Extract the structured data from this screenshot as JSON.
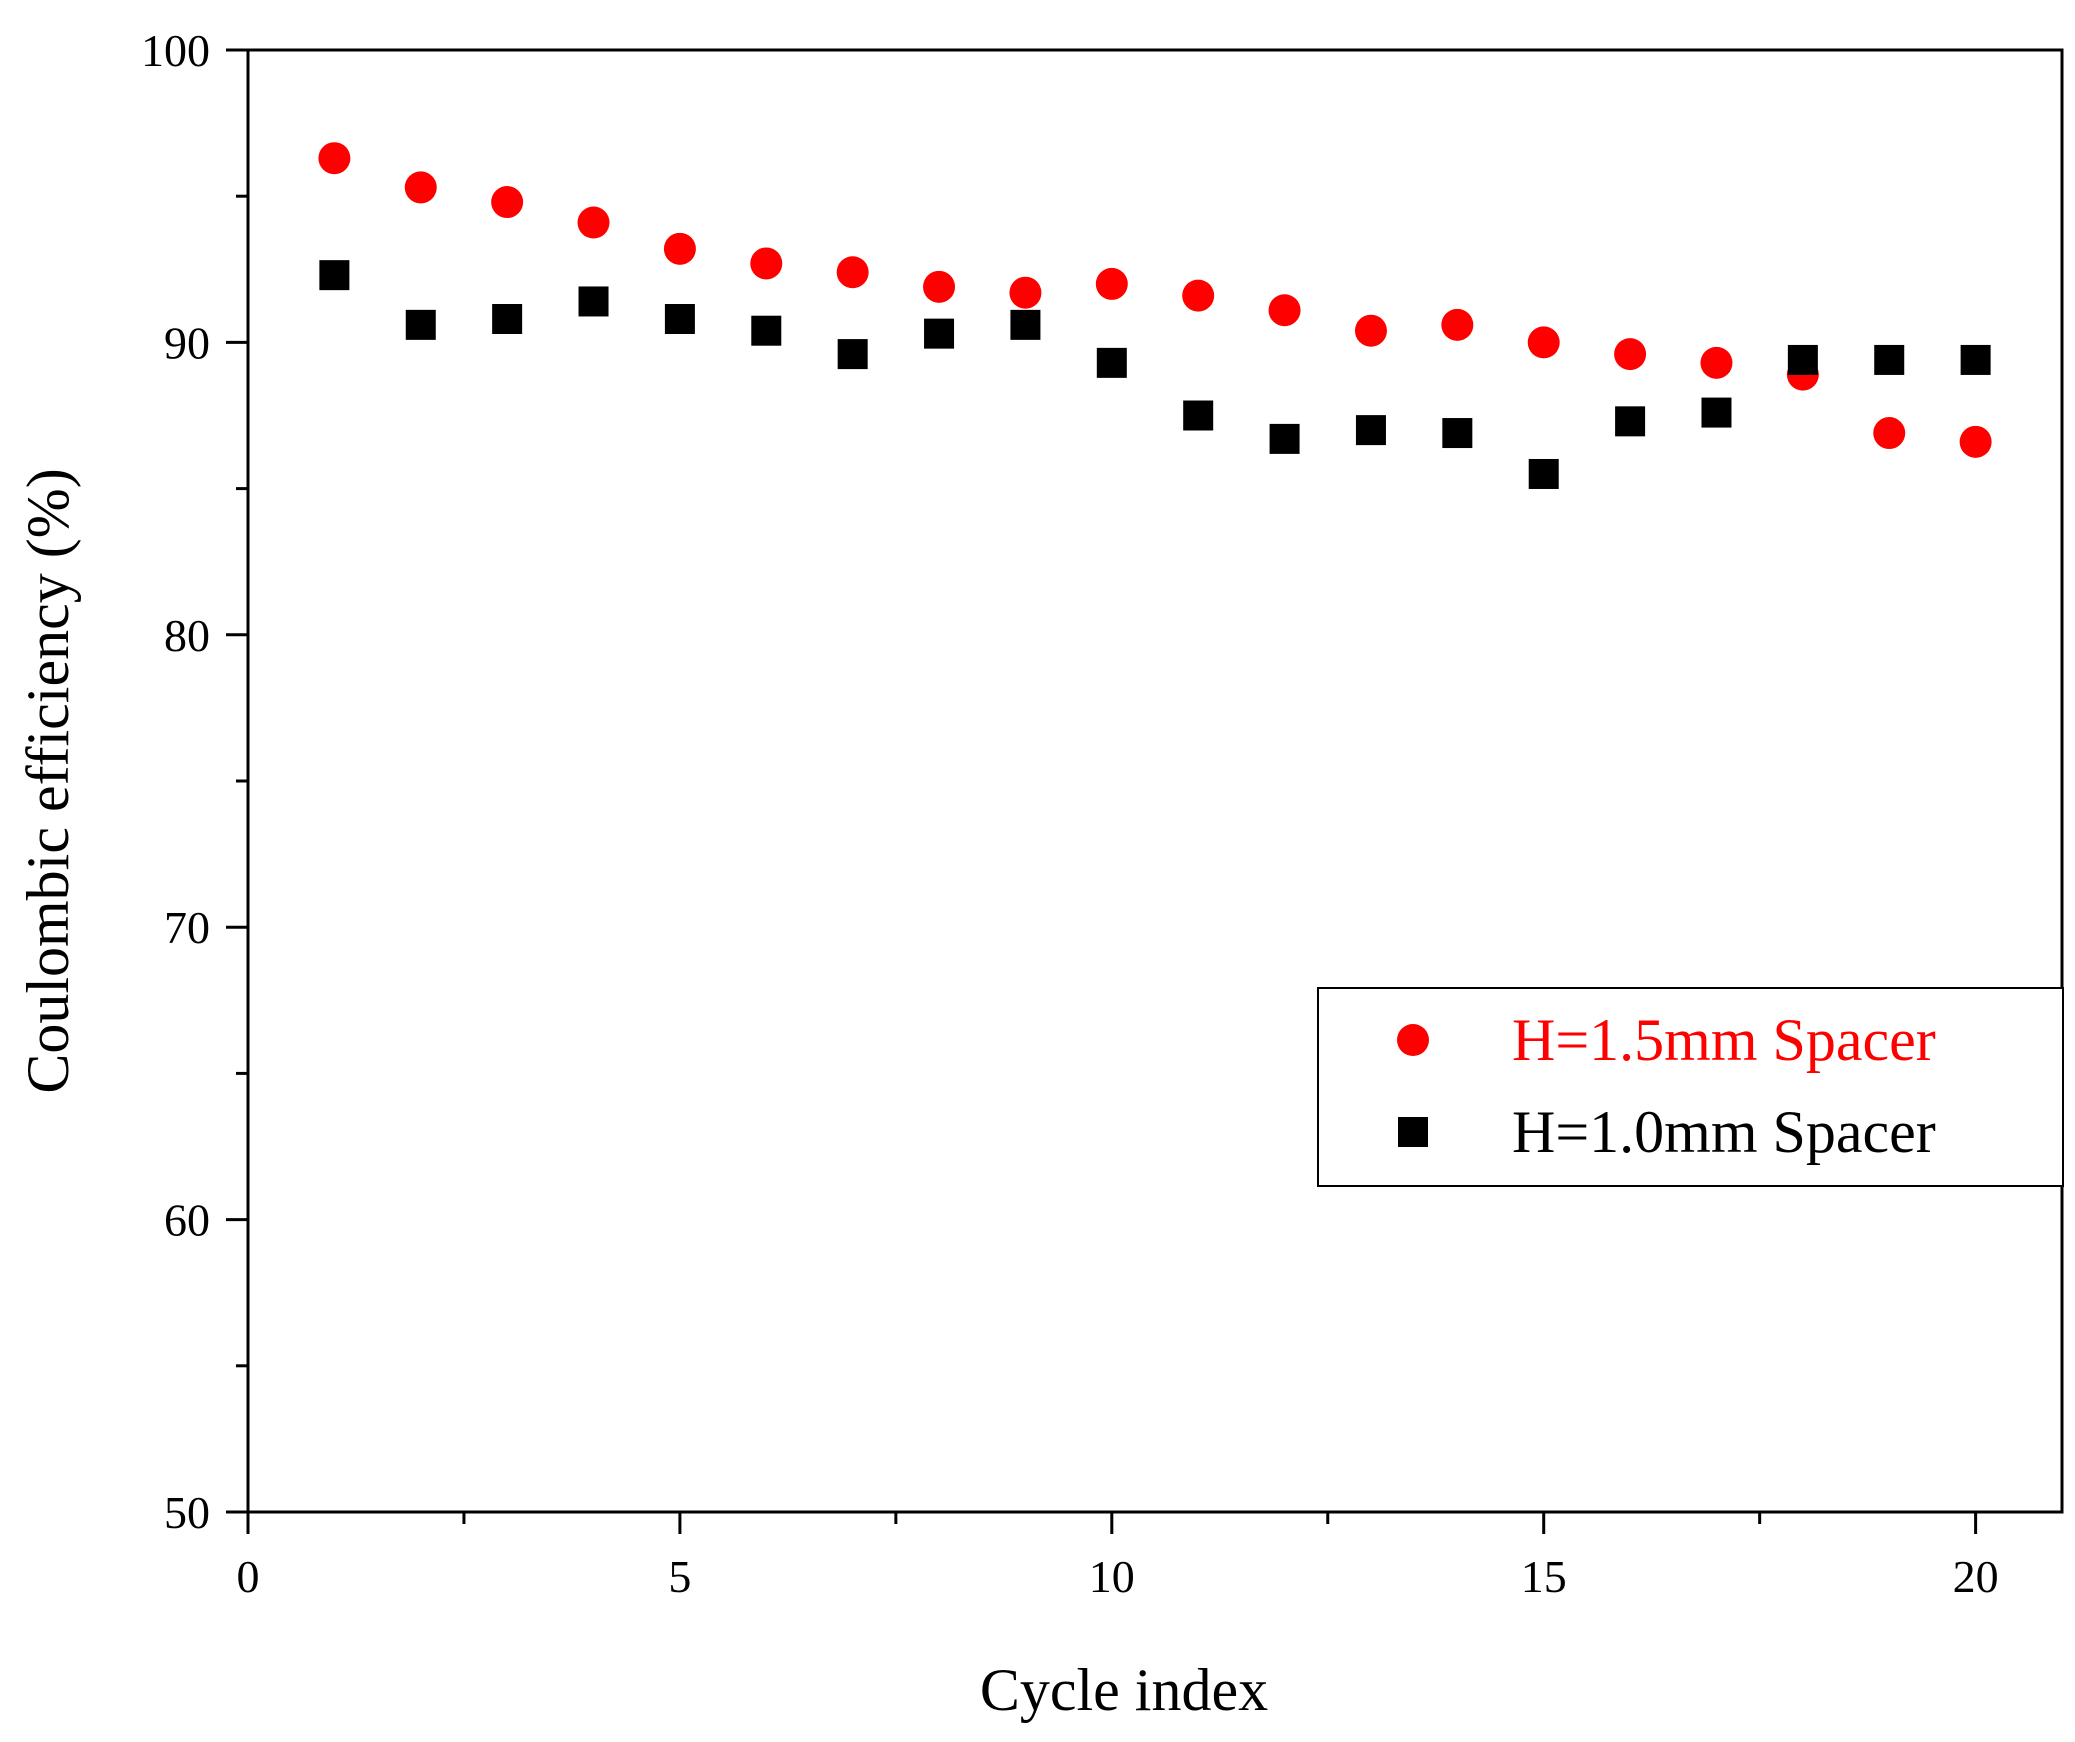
{
  "chart_data": {
    "type": "scatter",
    "title": "",
    "xlabel": "Cycle index",
    "ylabel": "Coulombic efficiency (%)",
    "xlim": [
      0,
      21
    ],
    "ylim": [
      50,
      100
    ],
    "x_major_ticks": [
      0,
      5,
      10,
      15,
      20
    ],
    "x_tick_labels": [
      "0",
      "5",
      "10",
      "15",
      "20"
    ],
    "x_minor_step": 2.5,
    "y_major_ticks": [
      50,
      60,
      70,
      80,
      90,
      100
    ],
    "y_tick_labels": [
      "50",
      "60",
      "70",
      "80",
      "90",
      "100"
    ],
    "y_minor_step": 5,
    "grid": false,
    "legend_position": "middle-right",
    "series": [
      {
        "name": "H=1.5mm Spacer",
        "marker": "circle",
        "color": "#ff0000",
        "x": [
          1,
          2,
          3,
          4,
          5,
          6,
          7,
          8,
          9,
          10,
          11,
          12,
          13,
          14,
          15,
          16,
          17,
          18,
          19,
          20
        ],
        "values": [
          96.3,
          95.3,
          94.8,
          94.1,
          93.2,
          92.7,
          92.4,
          91.9,
          91.7,
          92.0,
          91.6,
          91.1,
          90.4,
          90.6,
          90.0,
          89.6,
          89.3,
          88.9,
          86.9,
          86.6
        ]
      },
      {
        "name": "H=1.0mm Spacer",
        "marker": "square",
        "color": "#000000",
        "x": [
          1,
          2,
          3,
          4,
          5,
          6,
          7,
          8,
          9,
          10,
          11,
          12,
          13,
          14,
          15,
          16,
          17,
          18,
          19,
          20
        ],
        "values": [
          92.3,
          90.6,
          90.8,
          91.4,
          90.8,
          90.4,
          89.6,
          90.3,
          90.6,
          89.3,
          87.5,
          86.7,
          87.0,
          86.9,
          85.5,
          87.3,
          87.6,
          89.4,
          89.4,
          89.4
        ]
      }
    ]
  }
}
